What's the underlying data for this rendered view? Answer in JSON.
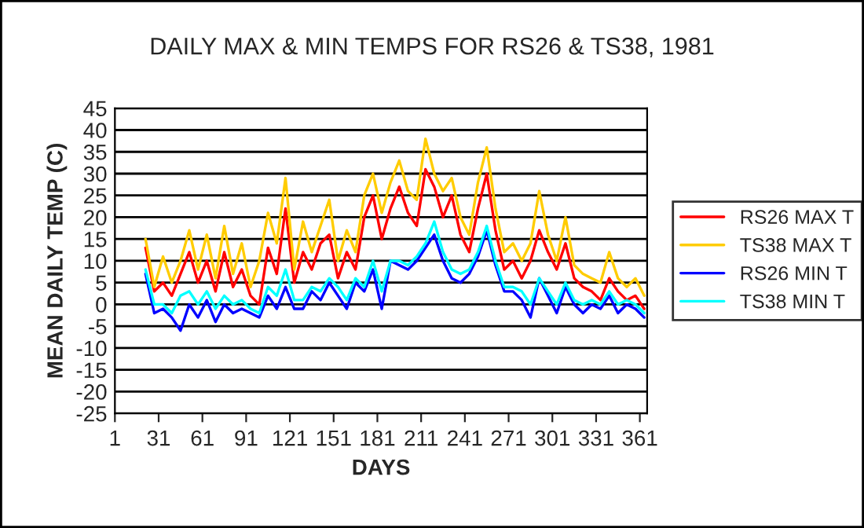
{
  "chart_data": {
    "type": "line",
    "title": "DAILY MAX & MIN TEMPS FOR RS26 & TS38, 1981",
    "xlabel": "DAYS",
    "ylabel": "MEAN DAILY TEMP (C)",
    "x": [
      22,
      28,
      34,
      40,
      46,
      52,
      58,
      64,
      70,
      76,
      82,
      88,
      94,
      100,
      106,
      112,
      118,
      124,
      130,
      136,
      142,
      148,
      154,
      160,
      166,
      172,
      178,
      184,
      190,
      196,
      202,
      208,
      214,
      220,
      226,
      232,
      238,
      244,
      250,
      256,
      262,
      268,
      274,
      280,
      286,
      292,
      298,
      304,
      310,
      316,
      322,
      328,
      334,
      340,
      346,
      352,
      358,
      364
    ],
    "series": [
      {
        "name": "RS26 MAX T",
        "color": "#ff0000",
        "values": [
          13,
          3,
          5,
          2,
          7,
          12,
          5,
          10,
          3,
          12,
          4,
          8,
          2,
          0,
          13,
          7,
          22,
          5,
          12,
          8,
          14,
          16,
          6,
          12,
          8,
          20,
          25,
          15,
          22,
          27,
          21,
          18,
          31,
          27,
          20,
          25,
          16,
          12,
          22,
          30,
          17,
          8,
          10,
          6,
          10,
          17,
          12,
          8,
          14,
          6,
          4,
          3,
          1,
          6,
          3,
          1,
          2,
          -1
        ]
      },
      {
        "name": "TS38 MAX T",
        "color": "#ffcc00",
        "values": [
          15,
          4,
          11,
          5,
          10,
          17,
          8,
          16,
          6,
          18,
          7,
          14,
          4,
          10,
          21,
          14,
          29,
          8,
          19,
          12,
          18,
          24,
          10,
          17,
          12,
          25,
          30,
          21,
          28,
          33,
          26,
          24,
          38,
          30,
          26,
          29,
          20,
          16,
          28,
          36,
          22,
          12,
          14,
          10,
          14,
          26,
          16,
          10,
          20,
          9,
          7,
          6,
          5,
          12,
          6,
          4,
          6,
          2
        ]
      },
      {
        "name": "RS26 MIN T",
        "color": "#0000ff",
        "values": [
          7,
          -2,
          -1,
          -3,
          -6,
          0,
          -3,
          1,
          -4,
          0,
          -2,
          -1,
          -2,
          -3,
          2,
          -1,
          4,
          -1,
          -1,
          3,
          1,
          5,
          2,
          -1,
          5,
          3,
          8,
          -1,
          10,
          9,
          8,
          10,
          13,
          16,
          10,
          6,
          5,
          7,
          11,
          17,
          9,
          3,
          3,
          1,
          -3,
          6,
          2,
          -2,
          4,
          0,
          -2,
          0,
          -1,
          2,
          -2,
          0,
          -1,
          -3
        ]
      },
      {
        "name": "TS38 MIN T",
        "color": "#00ffff",
        "values": [
          8,
          0,
          0,
          -2,
          2,
          3,
          0,
          3,
          -1,
          2,
          0,
          1,
          -1,
          -2,
          4,
          2,
          8,
          1,
          1,
          4,
          3,
          6,
          4,
          1,
          6,
          4,
          10,
          3,
          10,
          10,
          9,
          11,
          14,
          19,
          12,
          8,
          7,
          8,
          12,
          18,
          10,
          4,
          4,
          3,
          0,
          6,
          3,
          0,
          5,
          1,
          0,
          1,
          0,
          3,
          0,
          1,
          0,
          -2
        ]
      }
    ],
    "xlim": [
      1,
      366
    ],
    "xticks": [
      1,
      31,
      61,
      91,
      121,
      151,
      181,
      211,
      241,
      271,
      301,
      331,
      361
    ],
    "ylim": [
      -25,
      45
    ],
    "yticks": [
      -25,
      -20,
      -15,
      -10,
      -5,
      0,
      5,
      10,
      15,
      20,
      25,
      30,
      35,
      40,
      45
    ],
    "grid": "y",
    "legend": "right"
  }
}
